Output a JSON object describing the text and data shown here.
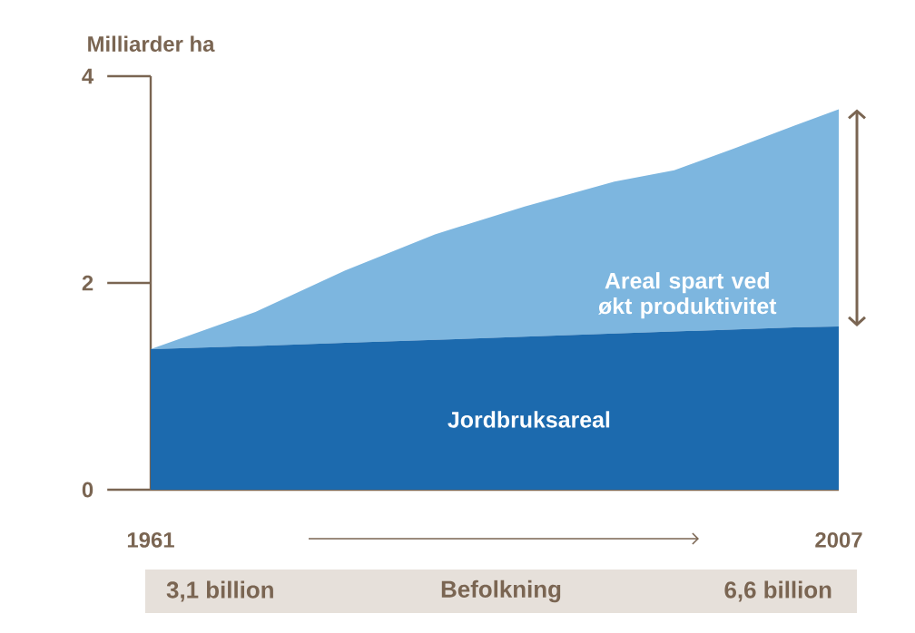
{
  "chart_data": {
    "type": "area",
    "stacked": true,
    "ylabel": "Milliarder ha",
    "x": [
      1961,
      1968,
      1974,
      1980,
      1986,
      1992,
      1996,
      2000,
      2004,
      2007
    ],
    "series": [
      {
        "name": "Jordbruksareal",
        "color": "#1c6aae",
        "values": [
          1.36,
          1.39,
          1.42,
          1.45,
          1.48,
          1.51,
          1.53,
          1.55,
          1.57,
          1.58
        ]
      },
      {
        "name": "Areal spart ved økt produktivitet",
        "color": "#7db6df",
        "values": [
          0,
          0.33,
          0.7,
          1.02,
          1.26,
          1.47,
          1.56,
          1.75,
          1.95,
          2.1
        ]
      }
    ],
    "xlim": [
      1961,
      2007
    ],
    "xticks": [
      1961,
      2007
    ],
    "ylim": [
      0,
      4
    ],
    "yticks": [
      0,
      2,
      4
    ],
    "annotations": [
      "3,1 billion",
      "Befolkning",
      "6,6 billion"
    ]
  }
}
